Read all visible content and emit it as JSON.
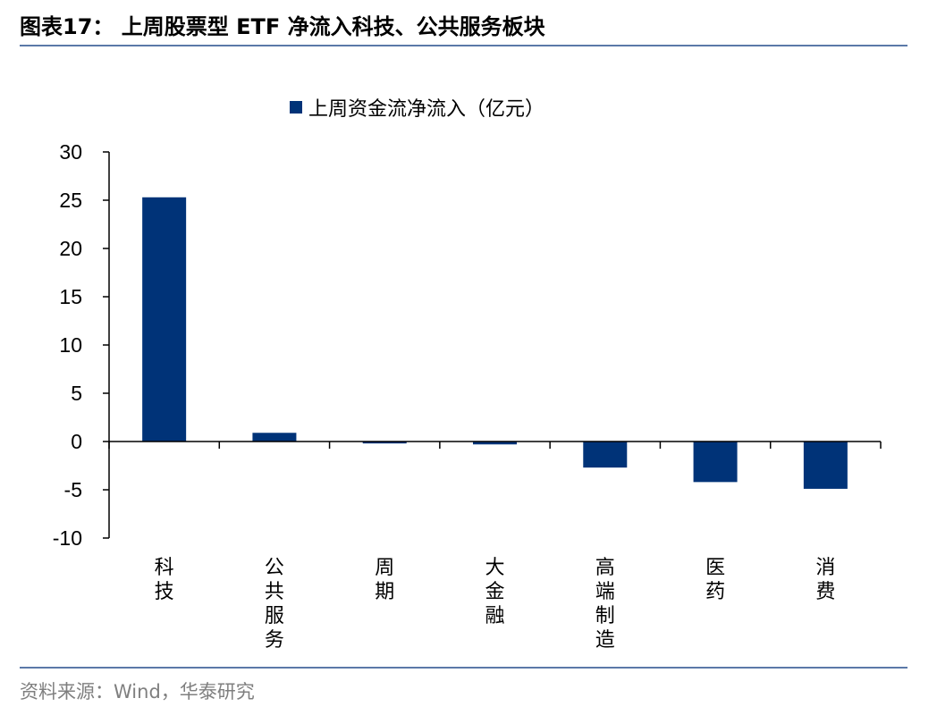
{
  "header": {
    "title": "图表17：  上周股票型 ETF 净流入科技、公共服务板块"
  },
  "footer": {
    "source": "资料来源：Wind，华泰研究"
  },
  "chart_data": {
    "type": "bar",
    "title": "",
    "xlabel": "",
    "ylabel": "",
    "categories": [
      "科技",
      "公共服务",
      "周期",
      "大金融",
      "高端制造",
      "医药",
      "消费"
    ],
    "series": [
      {
        "name": "上周资金流净流入（亿元）",
        "values": [
          25.3,
          0.9,
          -0.2,
          -0.3,
          -2.7,
          -4.2,
          -4.9
        ],
        "color": "#003378"
      }
    ],
    "ylim": [
      -10,
      30
    ],
    "yticks": [
      30,
      25,
      20,
      15,
      10,
      5,
      0,
      -5,
      -10
    ],
    "grid": false,
    "legend_position": "top-center"
  }
}
